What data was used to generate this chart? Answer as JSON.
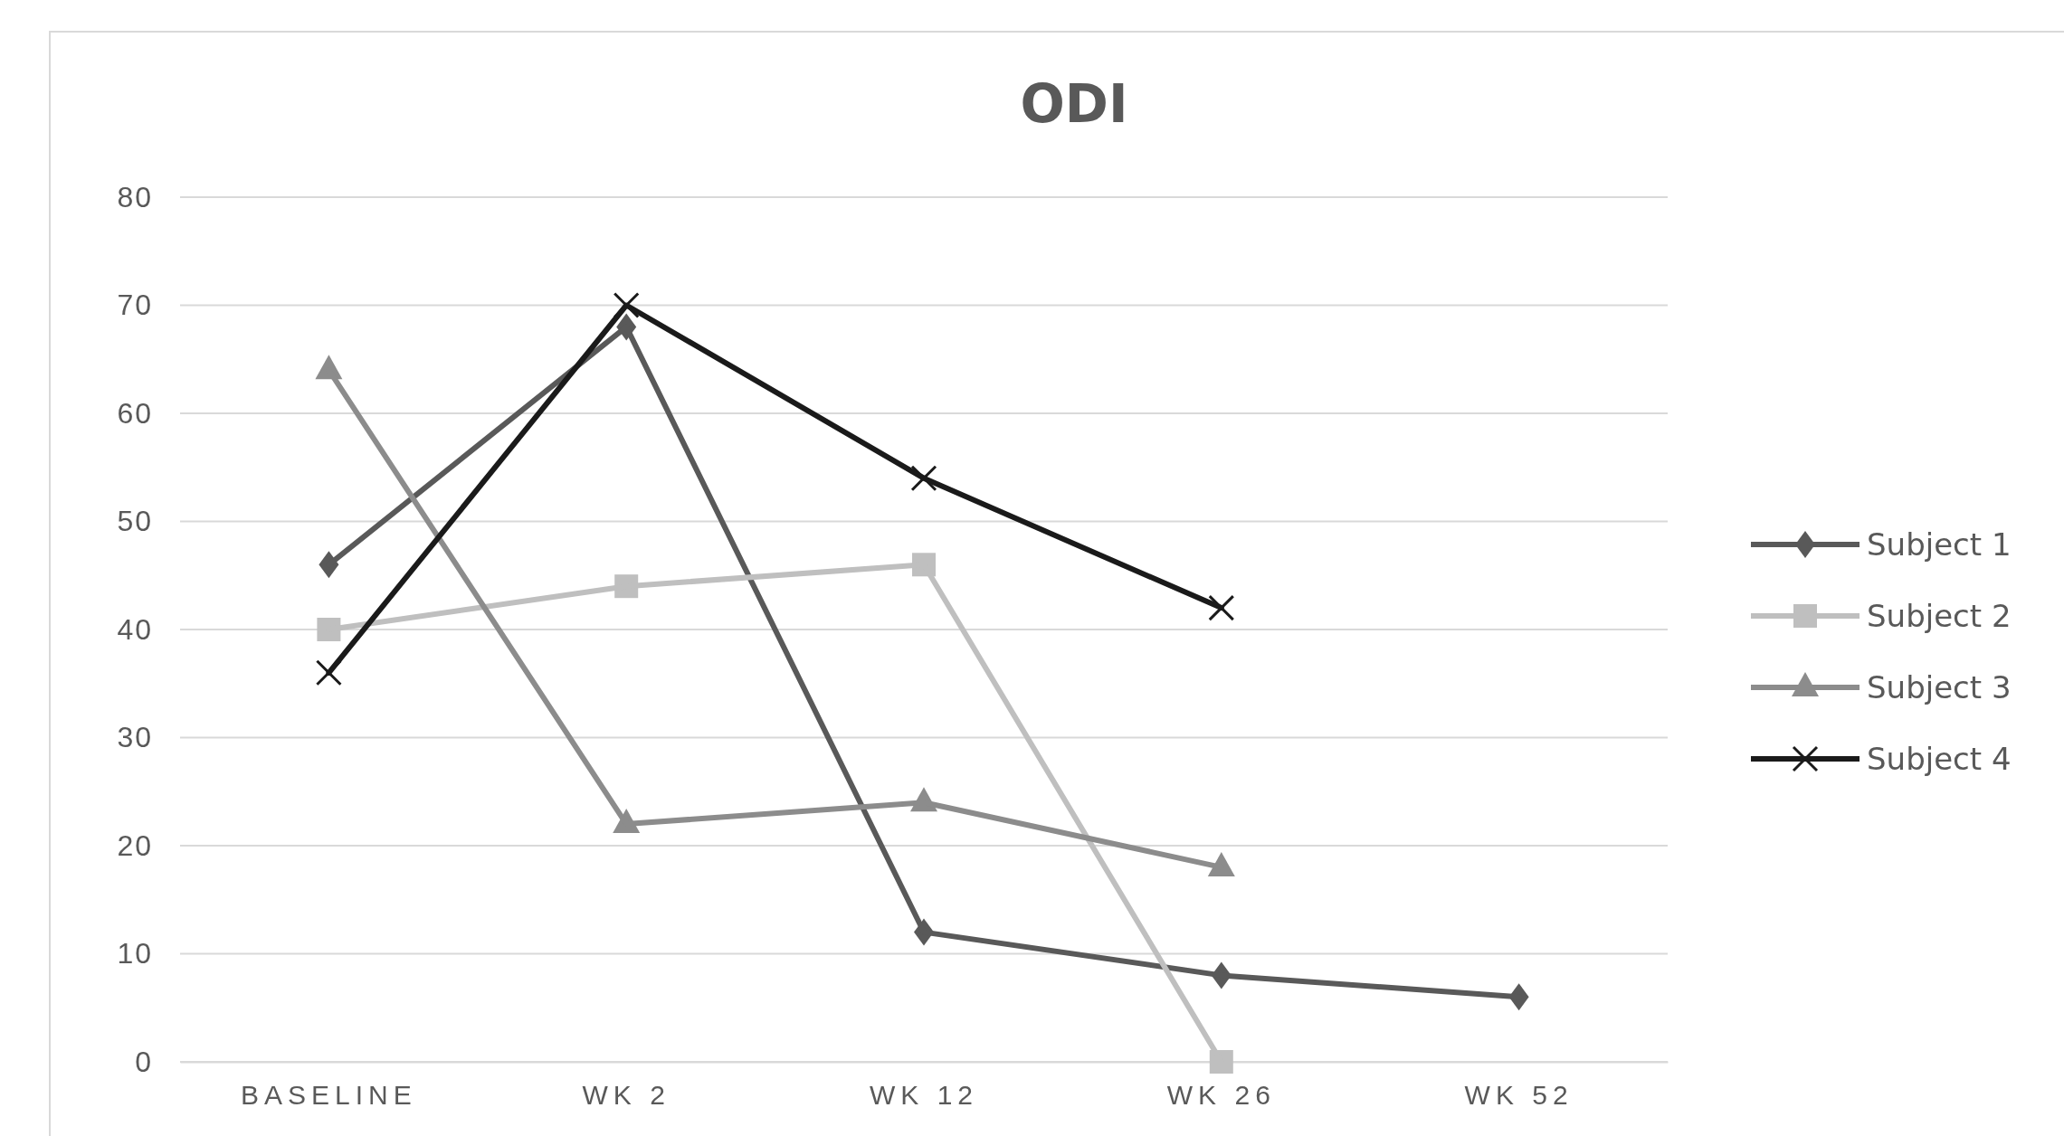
{
  "chart_data": {
    "type": "line",
    "title": "ODI",
    "categories": [
      "BASELINE",
      "WK 2",
      "WK 12",
      "WK 26",
      "WK 52"
    ],
    "series": [
      {
        "name": "Subject 1",
        "color": "#595959",
        "marker": "diamond",
        "values": [
          46,
          68,
          12,
          8,
          6
        ]
      },
      {
        "name": "Subject 2",
        "color": "#bfbfbf",
        "marker": "square",
        "values": [
          40,
          44,
          46,
          0,
          null
        ]
      },
      {
        "name": "Subject 3",
        "color": "#8c8c8c",
        "marker": "triangle",
        "values": [
          64,
          22,
          24,
          18,
          null
        ]
      },
      {
        "name": "Subject 4",
        "color": "#1a1a1a",
        "marker": "cross",
        "values": [
          36,
          70,
          54,
          42,
          null
        ]
      }
    ],
    "ylim": [
      0,
      80
    ],
    "yticks": [
      0,
      10,
      20,
      30,
      40,
      50,
      60,
      70,
      80
    ],
    "grid": "y",
    "legend": "right",
    "line_style": "solid"
  }
}
